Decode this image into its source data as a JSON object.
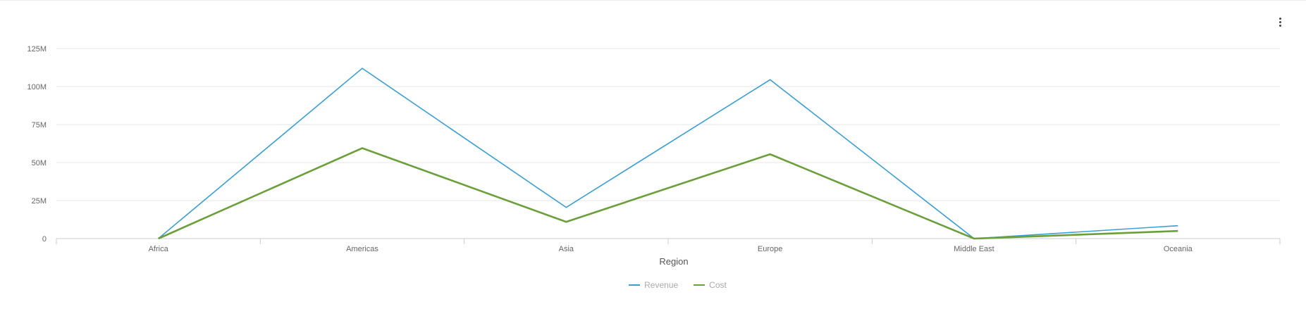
{
  "chart_data": {
    "type": "line",
    "title": "",
    "xlabel": "Region",
    "ylabel": "",
    "categories": [
      "Africa",
      "Americas",
      "Asia",
      "Europe",
      "Middle East",
      "Oceania"
    ],
    "ylim": [
      0,
      125000000
    ],
    "yticks": [
      {
        "value": 0,
        "label": "0"
      },
      {
        "value": 25000000,
        "label": "25M"
      },
      {
        "value": 50000000,
        "label": "50M"
      },
      {
        "value": 75000000,
        "label": "75M"
      },
      {
        "value": 100000000,
        "label": "100M"
      },
      {
        "value": 125000000,
        "label": "125M"
      }
    ],
    "grid": true,
    "legend_position": "bottom",
    "series": [
      {
        "name": "Revenue",
        "color": "#3a9fd6",
        "values": [
          0,
          112000000,
          20500000,
          104500000,
          0,
          8500000
        ]
      },
      {
        "name": "Cost",
        "color": "#6a9f3a",
        "values": [
          0,
          59500000,
          11000000,
          55500000,
          0,
          5000000
        ]
      }
    ]
  },
  "menu": {
    "icon": "more-vertical-icon"
  }
}
